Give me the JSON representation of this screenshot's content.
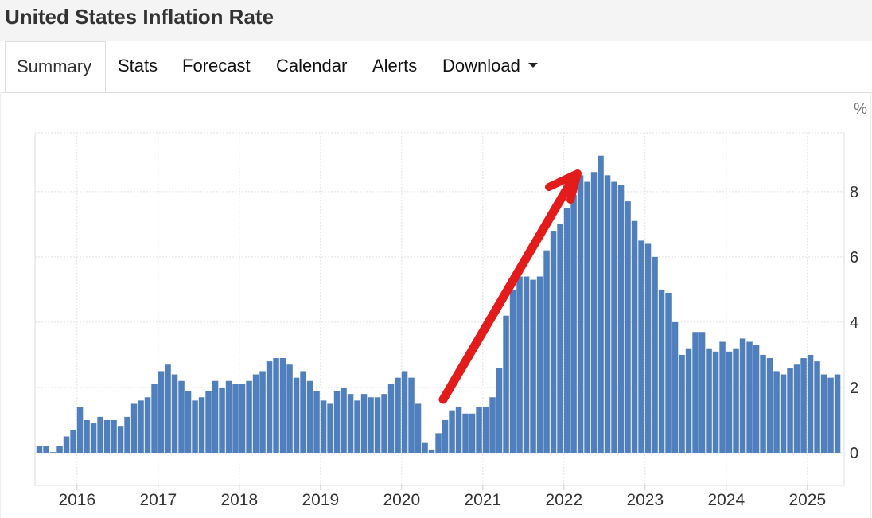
{
  "header": {
    "title": "United States Inflation Rate"
  },
  "tabs": [
    {
      "label": "Summary",
      "active": true
    },
    {
      "label": "Stats"
    },
    {
      "label": "Forecast"
    },
    {
      "label": "Calendar"
    },
    {
      "label": "Alerts"
    },
    {
      "label": "Download",
      "dropdown": true
    }
  ],
  "colors": {
    "bar": "#4f80bd",
    "annotation_arrow": "#e31b1b",
    "grid": "#e0e0e0"
  },
  "chart_data": {
    "type": "bar",
    "title": "",
    "unit_label": "%",
    "ylim": [
      -1,
      9.8
    ],
    "y_ticks": [
      0,
      2,
      4,
      6,
      8
    ],
    "y_tick_labels": [
      "0",
      "2",
      "4",
      "6",
      "8"
    ],
    "x_tick_labels": [
      "2016",
      "2017",
      "2018",
      "2019",
      "2020",
      "2021",
      "2022",
      "2023",
      "2024",
      "2025"
    ],
    "grid": true,
    "y_axis_position": "right",
    "annotation": "red arrow from 2020 low pointing up to the 2022 peak",
    "categories": [
      "2015-07",
      "2015-08",
      "2015-09",
      "2015-10",
      "2015-11",
      "2015-12",
      "2016-01",
      "2016-02",
      "2016-03",
      "2016-04",
      "2016-05",
      "2016-06",
      "2016-07",
      "2016-08",
      "2016-09",
      "2016-10",
      "2016-11",
      "2016-12",
      "2017-01",
      "2017-02",
      "2017-03",
      "2017-04",
      "2017-05",
      "2017-06",
      "2017-07",
      "2017-08",
      "2017-09",
      "2017-10",
      "2017-11",
      "2017-12",
      "2018-01",
      "2018-02",
      "2018-03",
      "2018-04",
      "2018-05",
      "2018-06",
      "2018-07",
      "2018-08",
      "2018-09",
      "2018-10",
      "2018-11",
      "2018-12",
      "2019-01",
      "2019-02",
      "2019-03",
      "2019-04",
      "2019-05",
      "2019-06",
      "2019-07",
      "2019-08",
      "2019-09",
      "2019-10",
      "2019-11",
      "2019-12",
      "2020-01",
      "2020-02",
      "2020-03",
      "2020-04",
      "2020-05",
      "2020-06",
      "2020-07",
      "2020-08",
      "2020-09",
      "2020-10",
      "2020-11",
      "2020-12",
      "2021-01",
      "2021-02",
      "2021-03",
      "2021-04",
      "2021-05",
      "2021-06",
      "2021-07",
      "2021-08",
      "2021-09",
      "2021-10",
      "2021-11",
      "2021-12",
      "2022-01",
      "2022-02",
      "2022-03",
      "2022-04",
      "2022-05",
      "2022-06",
      "2022-07",
      "2022-08",
      "2022-09",
      "2022-10",
      "2022-11",
      "2022-12",
      "2023-01",
      "2023-02",
      "2023-03",
      "2023-04",
      "2023-05",
      "2023-06",
      "2023-07",
      "2023-08",
      "2023-09",
      "2023-10",
      "2023-11",
      "2023-12",
      "2024-01",
      "2024-02",
      "2024-03",
      "2024-04",
      "2024-05",
      "2024-06",
      "2024-07",
      "2024-08",
      "2024-09",
      "2024-10",
      "2024-11",
      "2024-12",
      "2025-01",
      "2025-02",
      "2025-03",
      "2025-04",
      "2025-05"
    ],
    "values": [
      0.2,
      0.2,
      0.0,
      0.2,
      0.5,
      0.7,
      1.4,
      1.0,
      0.9,
      1.1,
      1.0,
      1.0,
      0.8,
      1.1,
      1.5,
      1.6,
      1.7,
      2.1,
      2.5,
      2.7,
      2.4,
      2.2,
      1.9,
      1.6,
      1.7,
      1.9,
      2.2,
      2.0,
      2.2,
      2.1,
      2.1,
      2.2,
      2.4,
      2.5,
      2.8,
      2.9,
      2.9,
      2.7,
      2.3,
      2.5,
      2.2,
      1.9,
      1.6,
      1.5,
      1.9,
      2.0,
      1.8,
      1.6,
      1.8,
      1.7,
      1.7,
      1.8,
      2.1,
      2.3,
      2.5,
      2.3,
      1.5,
      0.3,
      0.1,
      0.6,
      1.0,
      1.3,
      1.4,
      1.2,
      1.2,
      1.4,
      1.4,
      1.7,
      2.6,
      4.2,
      5.0,
      5.4,
      5.4,
      5.3,
      5.4,
      6.2,
      6.8,
      7.0,
      7.5,
      7.9,
      8.5,
      8.3,
      8.6,
      9.1,
      8.5,
      8.3,
      8.2,
      7.7,
      7.1,
      6.5,
      6.4,
      6.0,
      5.0,
      4.9,
      4.0,
      3.0,
      3.2,
      3.7,
      3.7,
      3.2,
      3.1,
      3.4,
      3.1,
      3.2,
      3.5,
      3.4,
      3.3,
      3.0,
      2.9,
      2.5,
      2.4,
      2.6,
      2.7,
      2.9,
      3.0,
      2.8,
      2.4,
      2.3,
      2.4
    ]
  }
}
